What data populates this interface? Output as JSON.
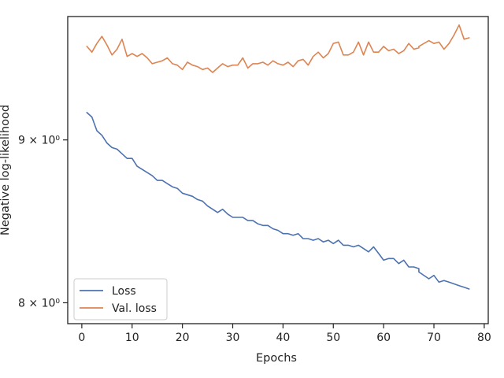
{
  "chart_data": {
    "type": "line",
    "title": "",
    "xlabel": "Epochs",
    "ylabel": "Negative log-likelihood",
    "yscale": "log",
    "xlim": [
      -2.8,
      80.8
    ],
    "ylim": [
      7.88,
      9.84
    ],
    "grid": false,
    "legend_position": "lower-left",
    "x_ticks": [
      0,
      10,
      20,
      30,
      40,
      50,
      60,
      70,
      80
    ],
    "x_tick_labels": [
      "0",
      "10",
      "20",
      "30",
      "40",
      "50",
      "60",
      "70",
      "80"
    ],
    "y_ticks": [
      8,
      9
    ],
    "y_tick_labels": [
      "8 × 10⁰",
      "9 × 10⁰"
    ],
    "x": [
      1,
      2,
      3,
      4,
      5,
      6,
      7,
      8,
      9,
      10,
      11,
      12,
      13,
      14,
      15,
      16,
      17,
      18,
      19,
      20,
      21,
      22,
      23,
      24,
      25,
      26,
      27,
      28,
      29,
      30,
      31,
      32,
      33,
      34,
      35,
      36,
      37,
      38,
      39,
      40,
      41,
      42,
      43,
      44,
      45,
      46,
      47,
      48,
      49,
      50,
      51,
      52,
      53,
      54,
      55,
      56,
      57,
      58,
      59,
      60,
      61,
      62,
      63,
      64,
      65,
      66,
      67,
      67,
      69,
      70,
      71,
      72,
      73,
      74,
      75,
      76,
      77
    ],
    "series": [
      {
        "name": "Loss",
        "color": "#4c72b0",
        "values": [
          9.18,
          9.15,
          9.06,
          9.03,
          8.98,
          8.95,
          8.94,
          8.91,
          8.88,
          8.88,
          8.83,
          8.81,
          8.79,
          8.77,
          8.74,
          8.74,
          8.72,
          8.7,
          8.69,
          8.66,
          8.65,
          8.64,
          8.62,
          8.61,
          8.58,
          8.56,
          8.54,
          8.56,
          8.53,
          8.51,
          8.51,
          8.51,
          8.49,
          8.49,
          8.47,
          8.46,
          8.46,
          8.44,
          8.43,
          8.41,
          8.41,
          8.4,
          8.41,
          8.38,
          8.38,
          8.37,
          8.38,
          8.36,
          8.37,
          8.35,
          8.37,
          8.34,
          8.34,
          8.33,
          8.34,
          8.32,
          8.3,
          8.33,
          8.29,
          8.25,
          8.26,
          8.26,
          8.23,
          8.25,
          8.21,
          8.21,
          8.2,
          8.18,
          8.14,
          8.16,
          8.12,
          8.13,
          8.12,
          8.11,
          8.1,
          8.09,
          8.08
        ]
      },
      {
        "name": "Val. loss",
        "color": "#dd8452",
        "values": [
          9.63,
          9.59,
          9.65,
          9.7,
          9.64,
          9.57,
          9.61,
          9.68,
          9.56,
          9.58,
          9.56,
          9.58,
          9.55,
          9.51,
          9.52,
          9.53,
          9.55,
          9.51,
          9.5,
          9.47,
          9.52,
          9.5,
          9.49,
          9.47,
          9.48,
          9.45,
          9.48,
          9.51,
          9.49,
          9.5,
          9.5,
          9.55,
          9.48,
          9.51,
          9.51,
          9.52,
          9.5,
          9.53,
          9.51,
          9.5,
          9.52,
          9.49,
          9.53,
          9.54,
          9.5,
          9.56,
          9.59,
          9.55,
          9.58,
          9.65,
          9.66,
          9.57,
          9.57,
          9.59,
          9.66,
          9.57,
          9.66,
          9.59,
          9.59,
          9.63,
          9.6,
          9.61,
          9.58,
          9.6,
          9.65,
          9.61,
          9.62,
          9.63,
          9.67,
          9.65,
          9.66,
          9.61,
          9.65,
          9.71,
          9.78,
          9.68,
          9.69
        ]
      }
    ]
  }
}
